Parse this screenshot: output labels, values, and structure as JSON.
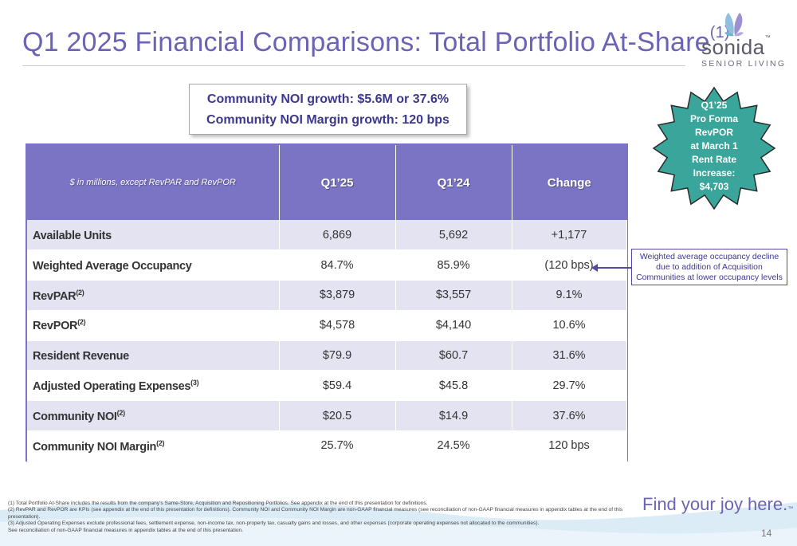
{
  "header": {
    "title": "Q1 2025 Financial Comparisons: Total Portfolio At-Share",
    "title_sup": "(1)"
  },
  "logo": {
    "word": "sonida",
    "tm": "™",
    "sub": "SENIOR LIVING"
  },
  "callout": {
    "line1_label": "Community NOI growth",
    "line1_value": ": $5.6M or 37.6%",
    "line2_label": "Community NOI Margin growth",
    "line2_value": ": 120 bps"
  },
  "starburst": {
    "lines": [
      "Q1’25",
      "Pro Forma",
      "RevPOR",
      "at March 1",
      "Rent Rate",
      "Increase:",
      "$4,703"
    ],
    "color": "#3aa59a"
  },
  "table": {
    "units_label": "$ in millions, except RevPAR and RevPOR",
    "columns": [
      "Q1’25",
      "Q1’24",
      "Change"
    ],
    "rows": [
      {
        "label": "Available Units",
        "sup": "",
        "q125": "6,869",
        "q124": "5,692",
        "change": "+1,177"
      },
      {
        "label": "Weighted Average Occupancy",
        "sup": "",
        "q125": "84.7%",
        "q124": "85.9%",
        "change": "(120 bps)"
      },
      {
        "label": "RevPAR",
        "sup": "(2)",
        "q125": "$3,879",
        "q124": "$3,557",
        "change": "9.1%"
      },
      {
        "label": "RevPOR",
        "sup": "(2)",
        "q125": "$4,578",
        "q124": "$4,140",
        "change": "10.6%"
      },
      {
        "label": "Resident Revenue",
        "sup": "",
        "q125": "$79.9",
        "q124": "$60.7",
        "change": "31.6%"
      },
      {
        "label": "Adjusted Operating Expenses",
        "sup": "(3)",
        "q125": "$59.4",
        "q124": "$45.8",
        "change": "29.7%"
      },
      {
        "label": "Community NOI",
        "sup": "(2)",
        "q125": "$20.5",
        "q124": "$14.9",
        "change": "37.6%"
      },
      {
        "label": "Community NOI Margin",
        "sup": "(2)",
        "q125": "25.7%",
        "q124": "24.5%",
        "change": "120 bps"
      }
    ],
    "header_color": "#7b74c4",
    "stripe_color": "#e4e3f1"
  },
  "side_note": "Weighted average occupancy decline due to addition of Acquisition Communities at lower occupancy levels",
  "footnotes": [
    "(1) Total Portfolio At-Share includes the results from the company’s Same-Store, Acquisition and Repositioning Portfolios. See appendix at the end of this presentation for definitions.",
    "(2) RevPAR and RevPOR are KPIs (see appendix at the end of this presentation for definitions). Community NOI and Community NOI Margin are non-GAAP financial measures (see reconciliation of non-GAAP financial measures in appendix tables at the end of this presentation).",
    "(3) Adjusted Operating Expenses exclude professional fees, settlement expense, non-income tax, non-property tax, casualty gains and losses, and other expenses (corporate operating expenses not allocated to the communities).",
    "See reconciliation of non-GAAP financial measures in appendix tables at the end of this presentation."
  ],
  "tagline": "Find your joy here.",
  "tagline_tm": "™",
  "page_number": "14",
  "colors": {
    "brand_purple": "#6b63b5",
    "dark_purple": "#3d3790"
  }
}
